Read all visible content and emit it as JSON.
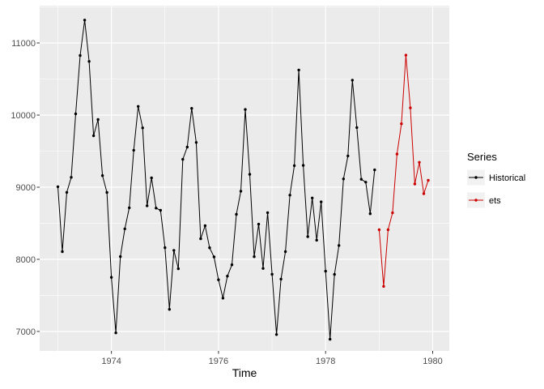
{
  "figure": {
    "background": "#ffffff",
    "panel_fill": "#ebebeb",
    "grid_color": "#ffffff",
    "tick_mark_color": "#333333",
    "tick_label_color": "#4d4d4d",
    "legend_key_fill": "#f2f2f2"
  },
  "x_axis": {
    "title": "Time",
    "tick_labels": [
      "1974",
      "1976",
      "1978",
      "1980"
    ]
  },
  "y_axis": {
    "title": "",
    "tick_labels": [
      "7000",
      "8000",
      "9000",
      "10000",
      "11000"
    ]
  },
  "legend": {
    "title": "Series",
    "entries": [
      {
        "label": "Historical",
        "color": "#000000"
      },
      {
        "label": "ets",
        "color": "#cc0000"
      }
    ]
  },
  "chart_data": {
    "type": "line",
    "title": "",
    "xlabel": "Time",
    "ylabel": "",
    "xlim": [
      1972.66,
      1980.31
    ],
    "ylim": [
      6730,
      11517
    ],
    "grid": true,
    "legend_position": "right",
    "x_major_ticks": [
      1974,
      1976,
      1978,
      1980
    ],
    "x_minor_ticks": [
      1973,
      1975,
      1977,
      1979
    ],
    "y_major_ticks": [
      7000,
      8000,
      9000,
      10000,
      11000
    ],
    "y_minor_ticks": [
      7500,
      8500,
      9500,
      10500,
      11500
    ],
    "series": [
      {
        "name": "Historical",
        "color": "#000000",
        "x_start": 1973.0,
        "x_step": 0.0833333,
        "values": [
          9007,
          8106,
          8928,
          9137,
          10017,
          10826,
          11317,
          10744,
          9713,
          9938,
          9161,
          8927,
          7750,
          6981,
          8038,
          8422,
          8714,
          9512,
          10120,
          9823,
          8743,
          9129,
          8710,
          8680,
          8162,
          7306,
          8124,
          7870,
          9387,
          9556,
          10093,
          9620,
          8285,
          8466,
          8160,
          8034,
          7717,
          7461,
          7767,
          7925,
          8623,
          8945,
          10078,
          9179,
          8037,
          8488,
          7874,
          8647,
          7792,
          6957,
          7726,
          8106,
          8890,
          9299,
          10625,
          9302,
          8314,
          8850,
          8265,
          8796,
          7836,
          6892,
          7791,
          8192,
          9115,
          9434,
          10484,
          9827,
          9110,
          9070,
          8633,
          9240
        ]
      },
      {
        "name": "ets",
        "color": "#cc0000",
        "x_start": 1979.0,
        "x_step": 0.0833333,
        "values": [
          8410,
          7625,
          8410,
          8645,
          9460,
          9880,
          10830,
          10100,
          9045,
          9345,
          8910,
          9095
        ]
      }
    ]
  }
}
